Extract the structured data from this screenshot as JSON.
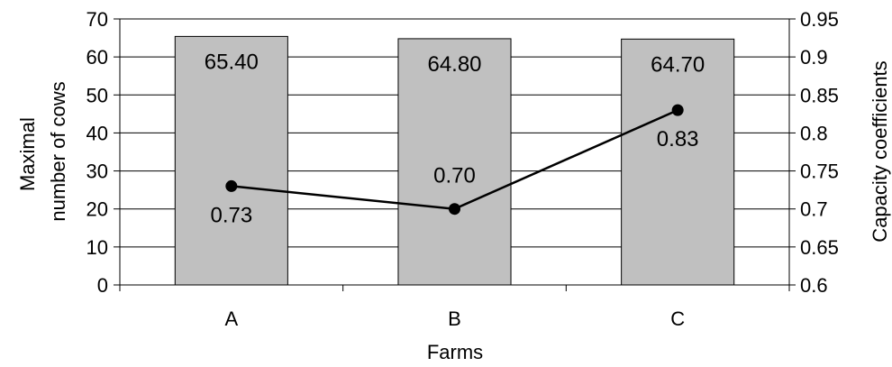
{
  "chart_data": {
    "type": "bar",
    "categories": [
      "A",
      "B",
      "C"
    ],
    "xlabel": "Farms",
    "ylabel_lines": [
      "Maximal",
      "number of cows"
    ],
    "y2label": "Capacity coefficients",
    "ylim": [
      0,
      70
    ],
    "y2lim": [
      0.6,
      0.95
    ],
    "yticks": [
      "0",
      "10",
      "20",
      "30",
      "40",
      "50",
      "60",
      "70"
    ],
    "y2ticks": [
      "0.6",
      "0.65",
      "0.7",
      "0.75",
      "0.8",
      "0.85",
      "0.9",
      "0.95"
    ],
    "grid": true,
    "series": [
      {
        "type": "bar",
        "axis": "left",
        "values": [
          65.4,
          64.8,
          64.7
        ],
        "labels": [
          "65.40",
          "64.80",
          "64.70"
        ],
        "color": "#c0c0c0"
      },
      {
        "type": "line",
        "axis": "right",
        "values": [
          0.73,
          0.7,
          0.83
        ],
        "labels": [
          "0.73",
          "0.70",
          "0.83"
        ],
        "color": "#000000"
      }
    ]
  }
}
